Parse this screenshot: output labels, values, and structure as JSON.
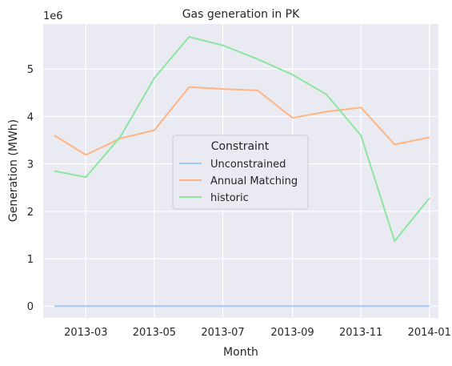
{
  "chart_data": {
    "type": "line",
    "title": "Gas generation in PK",
    "xlabel": "Month",
    "ylabel": "Generation (MWh)",
    "y_offset_label": "1e6",
    "x": [
      "2013-02-01",
      "2013-03-01",
      "2013-04-01",
      "2013-05-01",
      "2013-06-01",
      "2013-07-01",
      "2013-08-01",
      "2013-09-01",
      "2013-10-01",
      "2013-11-01",
      "2013-12-01",
      "2014-01-01"
    ],
    "x_ticks": [
      "2013-03",
      "2013-05",
      "2013-07",
      "2013-09",
      "2013-11",
      "2014-01"
    ],
    "y_ticks": [
      "0",
      "1",
      "2",
      "3",
      "4",
      "5"
    ],
    "ylim": [
      -250000,
      5950000
    ],
    "grid": true,
    "legend": {
      "title": "Constraint",
      "placement": "center"
    },
    "series": [
      {
        "name": "Unconstrained",
        "color": "#a1c9f4",
        "values": [
          0,
          0,
          0,
          0,
          0,
          0,
          0,
          0,
          0,
          0,
          0,
          0
        ]
      },
      {
        "name": "Annual Matching",
        "color": "#ffb482",
        "values": [
          3600000,
          3190000,
          3540000,
          3710000,
          4620000,
          4580000,
          4550000,
          3970000,
          4100000,
          4190000,
          3410000,
          3560000
        ]
      },
      {
        "name": "historic",
        "color": "#8de5a1",
        "values": [
          2850000,
          2720000,
          3580000,
          4810000,
          5680000,
          5500000,
          5210000,
          4880000,
          4470000,
          3600000,
          1370000,
          2280000
        ]
      }
    ]
  }
}
